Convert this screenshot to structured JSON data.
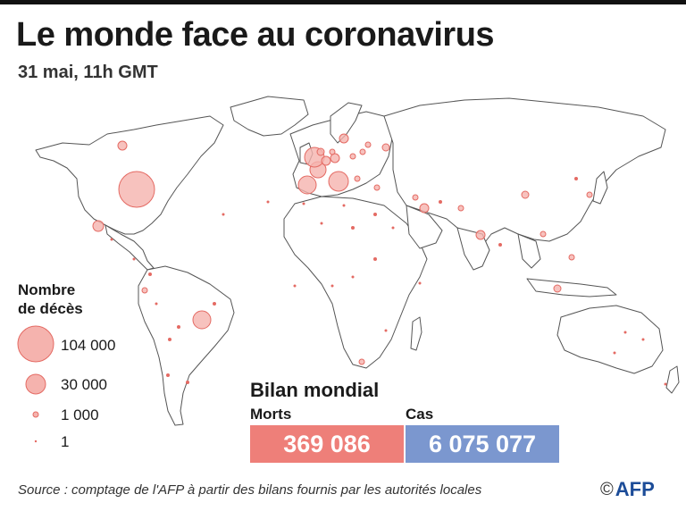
{
  "header": {
    "title": "Le monde face au coronavirus",
    "subtitle": "31 mai, 11h GMT"
  },
  "legend": {
    "title_line1": "Nombre",
    "title_line2": "de décès",
    "items": [
      {
        "label": "104 000",
        "value": 104000
      },
      {
        "label": "30 000",
        "value": 30000
      },
      {
        "label": "1 000",
        "value": 1000
      },
      {
        "label": "1",
        "value": 1
      }
    ]
  },
  "bilan": {
    "title": "Bilan mondial",
    "deaths_label": "Morts",
    "deaths_value": "369 086",
    "cases_label": "Cas",
    "cases_value": "6 075 077"
  },
  "colors": {
    "bubble_fill": "#f5b3ae",
    "bubble_stroke": "#e46a63",
    "deaths_box": "#ee7f79",
    "cases_box": "#7b97cf",
    "land_stroke": "#555555"
  },
  "source": "Source : comptage de l'AFP à partir des bilans fournis par les autorités locales",
  "logo": {
    "copyright": "©",
    "text": "AFP"
  }
}
